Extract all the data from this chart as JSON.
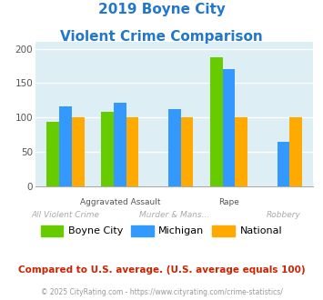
{
  "title_line1": "2019 Boyne City",
  "title_line2": "Violent Crime Comparison",
  "title_color": "#2277cc",
  "boyne_city": [
    93,
    108,
    0,
    188,
    0
  ],
  "michigan": [
    116,
    122,
    112,
    170,
    65
  ],
  "national": [
    100,
    100,
    100,
    100,
    100
  ],
  "color_boyne": "#66cc00",
  "color_michigan": "#3399ff",
  "color_national": "#ffaa00",
  "ylim": [
    0,
    210
  ],
  "yticks": [
    0,
    50,
    100,
    150,
    200
  ],
  "background_color": "#ddeef4",
  "top_labels": [
    "",
    "Aggravated Assault",
    "",
    "Rape",
    ""
  ],
  "bot_labels": [
    "All Violent Crime",
    "",
    "Murder & Mans...",
    "",
    "Robbery"
  ],
  "footer_text": "Compared to U.S. average. (U.S. average equals 100)",
  "footer_color": "#cc2200",
  "credit_text": "© 2025 CityRating.com - https://www.cityrating.com/crime-statistics/",
  "credit_color": "#999999",
  "legend_labels": [
    "Boyne City",
    "Michigan",
    "National"
  ]
}
